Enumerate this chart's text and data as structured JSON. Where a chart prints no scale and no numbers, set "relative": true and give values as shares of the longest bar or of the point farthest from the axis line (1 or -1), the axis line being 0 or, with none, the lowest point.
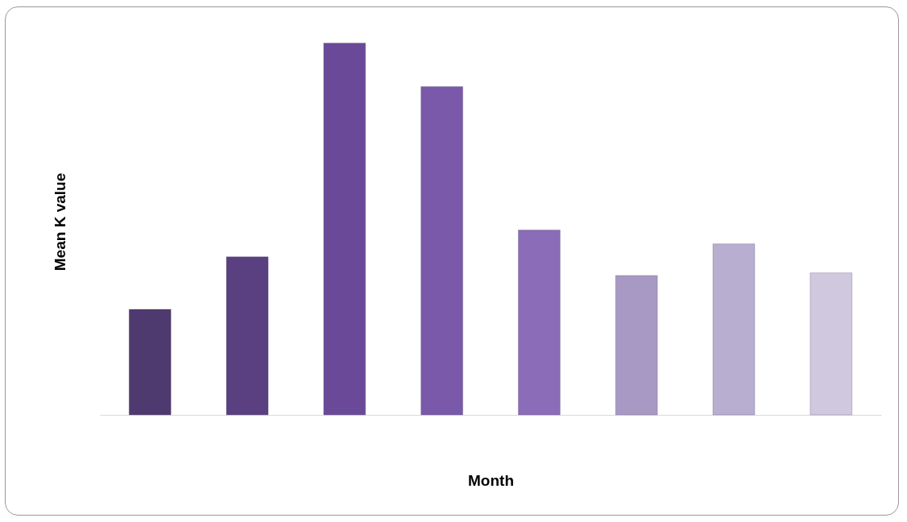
{
  "chart_data": {
    "type": "bar",
    "xlabel": "Month",
    "ylabel": "Mean K value",
    "relative": true,
    "categories": [
      null,
      null,
      null,
      null,
      null,
      null,
      null,
      null
    ],
    "values": [
      0.284,
      0.425,
      1,
      0.883,
      0.497,
      0.375,
      0.46,
      0.382
    ],
    "colors": [
      "#4e3a6e",
      "#5a4080",
      "#6a4a98",
      "#7a58aa",
      "#8a6cb8",
      "#a898c4",
      "#b8aed0",
      "#cfc8de"
    ]
  }
}
